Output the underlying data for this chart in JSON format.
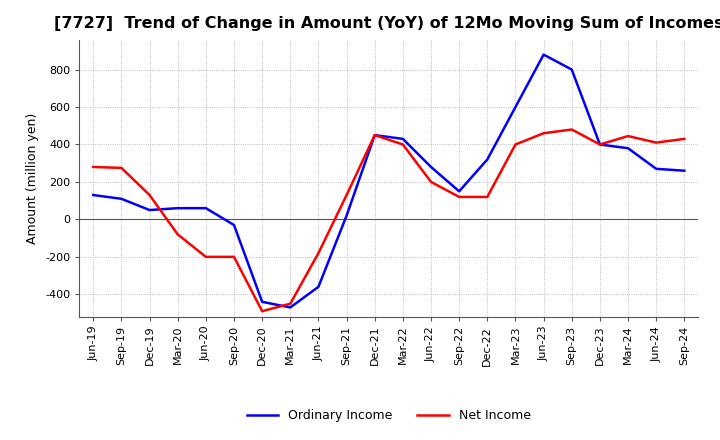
{
  "title": "[7727]  Trend of Change in Amount (YoY) of 12Mo Moving Sum of Incomes",
  "ylabel": "Amount (million yen)",
  "title_fontsize": 11.5,
  "label_fontsize": 9,
  "tick_fontsize": 8,
  "background_color": "#ffffff",
  "grid_color": "#aaaaaa",
  "ordinary_income_color": "#0000ff",
  "net_income_color": "#ff0000",
  "x_labels": [
    "Jun-19",
    "Sep-19",
    "Dec-19",
    "Mar-20",
    "Jun-20",
    "Sep-20",
    "Dec-20",
    "Mar-21",
    "Jun-21",
    "Sep-21",
    "Dec-21",
    "Mar-22",
    "Jun-22",
    "Sep-22",
    "Dec-22",
    "Mar-23",
    "Jun-23",
    "Sep-23",
    "Dec-23",
    "Mar-24",
    "Jun-24",
    "Sep-24"
  ],
  "ordinary_income": [
    130,
    110,
    50,
    60,
    60,
    -30,
    -440,
    -470,
    -360,
    20,
    450,
    430,
    280,
    150,
    320,
    600,
    880,
    800,
    400,
    380,
    270,
    260
  ],
  "net_income": [
    280,
    275,
    130,
    -80,
    -200,
    -200,
    -490,
    -450,
    -180,
    130,
    450,
    400,
    200,
    120,
    120,
    400,
    460,
    480,
    400,
    445,
    410,
    430
  ],
  "ylim": [
    -520,
    960
  ],
  "yticks": [
    -400,
    -200,
    0,
    200,
    400,
    600,
    800
  ],
  "legend_labels": [
    "Ordinary Income",
    "Net Income"
  ]
}
